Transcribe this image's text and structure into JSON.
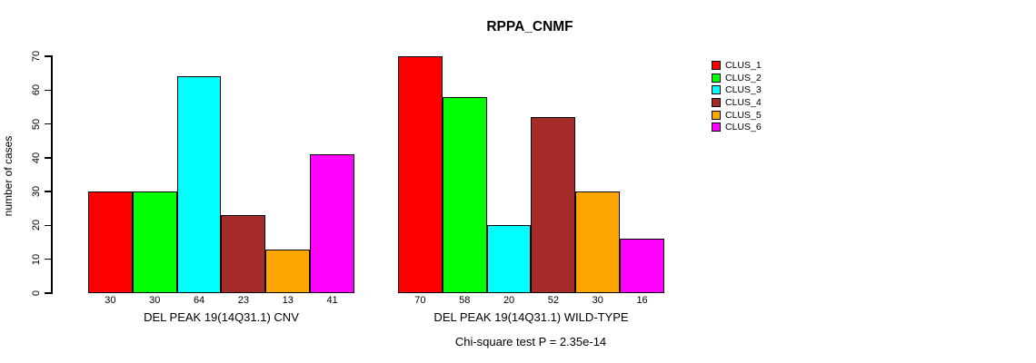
{
  "chart_data": {
    "type": "bar",
    "title": "RPPA_CNMF",
    "ylabel": "number of cases",
    "xlabel": "",
    "ylim": [
      0,
      70
    ],
    "yticks": [
      0,
      10,
      20,
      30,
      40,
      50,
      60,
      70
    ],
    "grid": false,
    "legend_position": "right",
    "legend": [
      {
        "label": "CLUS_1",
        "color": "#FF0000"
      },
      {
        "label": "CLUS_2",
        "color": "#00FF00"
      },
      {
        "label": "CLUS_3",
        "color": "#00FFFF"
      },
      {
        "label": "CLUS_4",
        "color": "#A52A2A"
      },
      {
        "label": "CLUS_5",
        "color": "#FFA500"
      },
      {
        "label": "CLUS_6",
        "color": "#FF00FF"
      }
    ],
    "groups": [
      {
        "label": "DEL PEAK 19(14Q31.1) CNV",
        "categories": [
          "CLUS_1",
          "CLUS_2",
          "CLUS_3",
          "CLUS_4",
          "CLUS_5",
          "CLUS_6"
        ],
        "values": [
          30,
          30,
          64,
          23,
          13,
          41
        ]
      },
      {
        "label": "DEL PEAK 19(14Q31.1) WILD-TYPE",
        "categories": [
          "CLUS_1",
          "CLUS_2",
          "CLUS_3",
          "CLUS_4",
          "CLUS_5",
          "CLUS_6"
        ],
        "values": [
          70,
          58,
          20,
          52,
          30,
          16
        ]
      }
    ],
    "annotation": "Chi-square test P = 2.35e-14"
  }
}
